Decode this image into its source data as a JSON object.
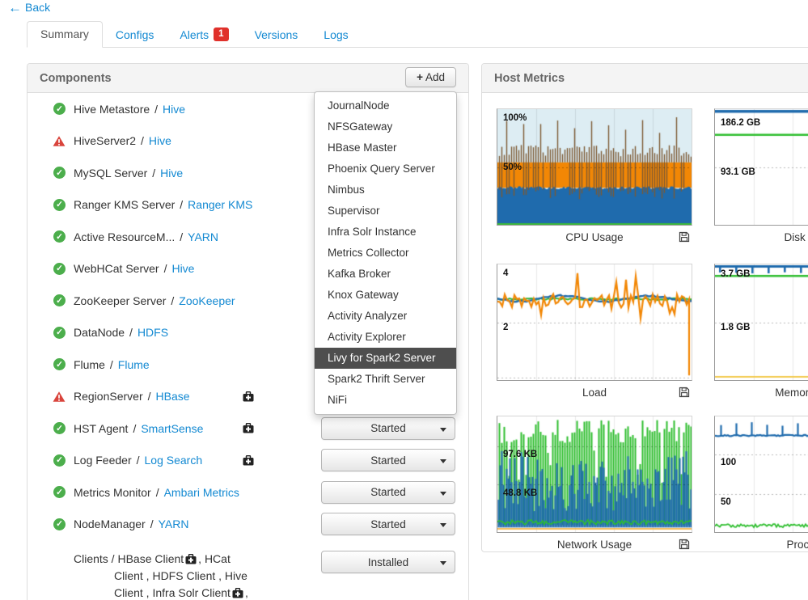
{
  "back": {
    "label": "Back"
  },
  "tabs": [
    {
      "label": "Summary",
      "active": true
    },
    {
      "label": "Configs"
    },
    {
      "label": "Alerts",
      "badge": "1"
    },
    {
      "label": "Versions"
    },
    {
      "label": "Logs"
    }
  ],
  "components": {
    "title": "Components",
    "add_label": "Add",
    "rows": [
      {
        "status": "ok",
        "name": "Hive Metastore",
        "service": "Hive"
      },
      {
        "status": "alert",
        "name": "HiveServer2",
        "service": "Hive"
      },
      {
        "status": "ok",
        "name": "MySQL Server",
        "service": "Hive"
      },
      {
        "status": "ok",
        "name": "Ranger KMS Server",
        "service": "Ranger KMS"
      },
      {
        "status": "ok",
        "name": "Active ResourceM...",
        "service": "YARN"
      },
      {
        "status": "ok",
        "name": "WebHCat Server",
        "service": "Hive"
      },
      {
        "status": "ok",
        "name": "ZooKeeper Server",
        "service": "ZooKeeper"
      },
      {
        "status": "ok",
        "name": "DataNode",
        "service": "HDFS"
      },
      {
        "status": "ok",
        "name": "Flume",
        "service": "Flume"
      },
      {
        "status": "alert",
        "name": "RegionServer",
        "service": "HBase",
        "maintenance": true
      },
      {
        "status": "ok",
        "name": "HST Agent",
        "service": "SmartSense",
        "maintenance": true,
        "action": "Started"
      },
      {
        "status": "ok",
        "name": "Log Feeder",
        "service": "Log Search",
        "maintenance": true,
        "action": "Started"
      },
      {
        "status": "ok",
        "name": "Metrics Monitor",
        "service": "Ambari Metrics",
        "action": "Started"
      },
      {
        "status": "ok",
        "name": "NodeManager",
        "service": "YARN",
        "action": "Started"
      }
    ],
    "clients": {
      "action": "Installed",
      "line1_pre": "Clients / HBase Client",
      "line1_post": ", HCat",
      "line2": "Client , HDFS Client , Hive",
      "line3_pre": "Client , Infra Solr Client",
      "line3_post": ","
    }
  },
  "add_menu": {
    "items": [
      "JournalNode",
      "NFSGateway",
      "HBase Master",
      "Phoenix Query Server",
      "Nimbus",
      "Supervisor",
      "Infra Solr Instance",
      "Metrics Collector",
      "Kafka Broker",
      "Knox Gateway",
      "Activity Analyzer",
      "Activity Explorer",
      "Livy for Spark2 Server",
      "Spark2 Thrift Server",
      "NiFi"
    ],
    "highlighted": "Livy for Spark2 Server"
  },
  "host_metrics": {
    "title": "Host Metrics",
    "charts": [
      {
        "id": "cpu",
        "title": "CPU Usage",
        "type": "cpu",
        "ylabels": [
          {
            "text": "100%",
            "y": 0.035
          },
          {
            "text": "50%",
            "y": 0.465
          }
        ],
        "grid_h": [
          0.5
        ],
        "params": {
          "bg": "#ddedf3",
          "orange_top": 0.46,
          "blue_top": 0.68,
          "orange_color": "#f28705",
          "blue_color": "#1f6bad",
          "spike_color": "#7d5a33",
          "base_color": "#3cb83c"
        },
        "approx": {
          "idle_pct_top_area": "light blue",
          "blue_area_pct": 32,
          "orange_band_pct": [
            32,
            54
          ],
          "spike_peaks_pct": [
            60,
            97
          ]
        }
      },
      {
        "id": "disk",
        "title": "Disk Usage",
        "type": "lines",
        "ylabels": [
          {
            "text": "186.2 GB",
            "y": 0.08
          },
          {
            "text": "93.1 GB",
            "y": 0.5
          }
        ],
        "grid_h": [
          0.5
        ],
        "params": {
          "lines": [
            {
              "y": 0.012,
              "width": 3.5,
              "color": "#1f6bad"
            },
            {
              "y": 0.215,
              "width": 2.6,
              "color": "#2fbe2f"
            }
          ]
        },
        "approx": {
          "green_line_value": "≈165 GB",
          "blue_line_value": "≈186 GB"
        }
      },
      {
        "id": "load",
        "title": "Load",
        "type": "load",
        "ylabels": [
          {
            "text": "4",
            "y": 0.035
          },
          {
            "text": "2",
            "y": 0.5
          }
        ],
        "grid_h": [
          0.5,
          0.98
        ],
        "params": {
          "orange": "#f28705",
          "blue": "#1f6bad",
          "green": "#37b437"
        },
        "approx": {
          "mean_load": 3.5,
          "spike_range": [
            2.9,
            4.2
          ]
        }
      },
      {
        "id": "memory",
        "title": "Memory Usage",
        "type": "memory",
        "ylabels": [
          {
            "text": "3.7 GB",
            "y": 0.045
          },
          {
            "text": "1.8 GB",
            "y": 0.5
          }
        ],
        "grid_h": [
          0.5
        ],
        "params": {
          "blue": "#1f6bad",
          "green": "#2fbe2f",
          "yellow": "#f2c94c"
        },
        "approx": {
          "green_line_value": "≈3.4 GB",
          "yellow_line_value": "≈0.1 GB",
          "blue_ticks": "clipped at top"
        }
      },
      {
        "id": "network",
        "title": "Network Usage",
        "type": "network",
        "ylabels": [
          {
            "text": "97.6 KB",
            "y": 0.29
          },
          {
            "text": "48.8 KB",
            "y": 0.62
          }
        ],
        "grid_h": [
          0.26,
          0.59
        ],
        "params": {
          "green": "#2ebe2e",
          "blue": "#1f6bad",
          "orange": "#f5a623"
        },
        "approx": {
          "green_spike_peaks": "≈130 KB",
          "blue_spike_peaks": "≈50-90 KB",
          "orange_line": "≈0 KB"
        }
      },
      {
        "id": "processes",
        "title": "Processes",
        "type": "processes",
        "ylabels": [
          {
            "text": "100",
            "y": 0.36
          },
          {
            "text": "50",
            "y": 0.7
          }
        ],
        "grid_h": [
          0.33,
          0.67
        ],
        "params": {
          "blue": "#1f6bad",
          "green": "#2ebe2e"
        },
        "approx": {
          "blue_line_value": "≈130 with spikes to ≈145",
          "green_line_value": "≈5"
        }
      }
    ]
  },
  "colors": {
    "link_blue": "#1389d2",
    "ok_green": "#4cae4c",
    "alert_red": "#d9443c",
    "badge_red": "#e0312b",
    "menu_highlight": "#4e4e4e",
    "panel_border": "#dddddd"
  }
}
